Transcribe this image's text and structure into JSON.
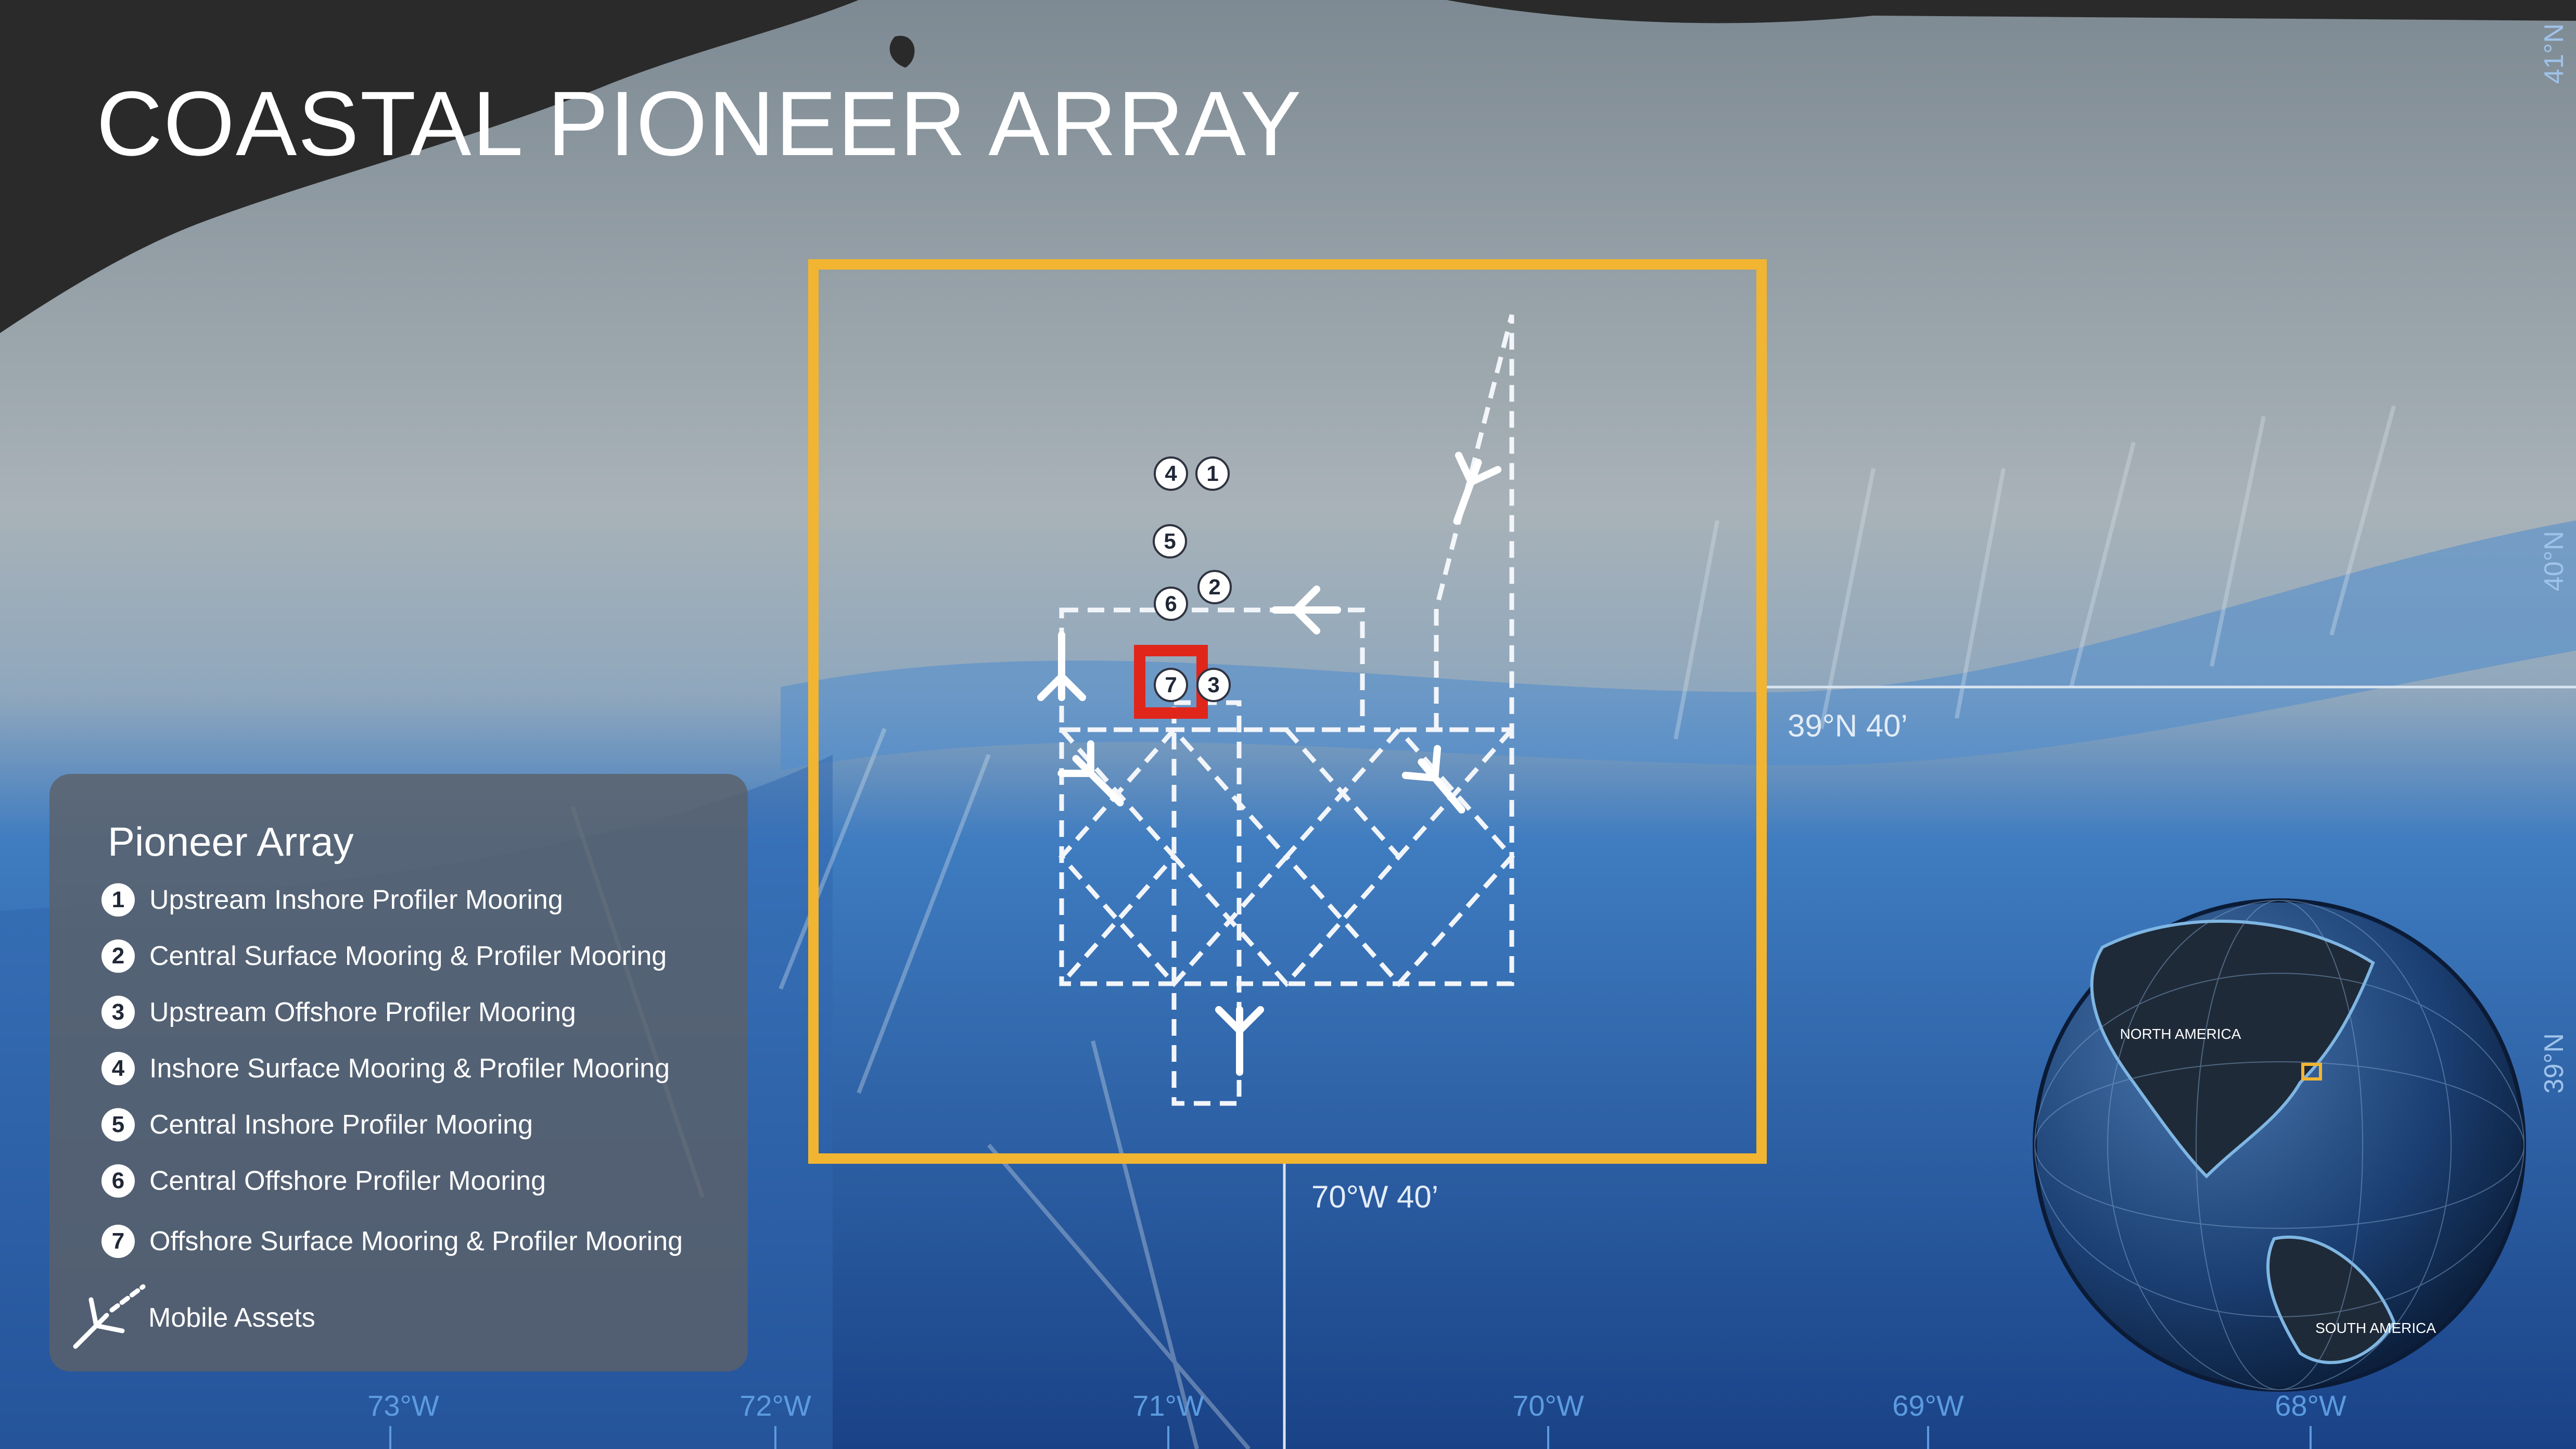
{
  "title": "COASTAL PIONEER ARRAY",
  "legend": {
    "title": "Pioneer Array",
    "items": [
      {
        "num": "1",
        "label": "Upstream Inshore Profiler Mooring"
      },
      {
        "num": "2",
        "label": "Central Surface Mooring & Profiler Mooring"
      },
      {
        "num": "3",
        "label": "Upstream Offshore Profiler Mooring"
      },
      {
        "num": "4",
        "label": "Inshore Surface Mooring & Profiler Mooring"
      },
      {
        "num": "5",
        "label": "Central Inshore Profiler Mooring"
      },
      {
        "num": "6",
        "label": "Central Offshore Profiler Mooring"
      },
      {
        "num": "7",
        "label": "Offshore Surface Mooring & Profiler Mooring"
      }
    ],
    "mobile_label": "Mobile Assets"
  },
  "axes": {
    "longitudes": [
      "73°W",
      "72°W",
      "71°W",
      "70°W",
      "69°W",
      "68°W"
    ],
    "latitudes": [
      "41°N",
      "40°N",
      "39°N"
    ]
  },
  "callouts": {
    "lat": "39°N 40’",
    "lon": "70°W 40’"
  },
  "markers": [
    "4",
    "1",
    "5",
    "2",
    "6",
    "7",
    "3"
  ],
  "globe": {
    "north_america": "NORTH AMERICA",
    "south_america": "SOUTH AMERICA"
  },
  "colors": {
    "study_box": "#f2b531",
    "highlight": "#e0261b",
    "land": "#2a2a2a",
    "deep_water": "#1d4f97",
    "shelf": "#9aa5ad",
    "axis_label": "#5c9be0"
  }
}
